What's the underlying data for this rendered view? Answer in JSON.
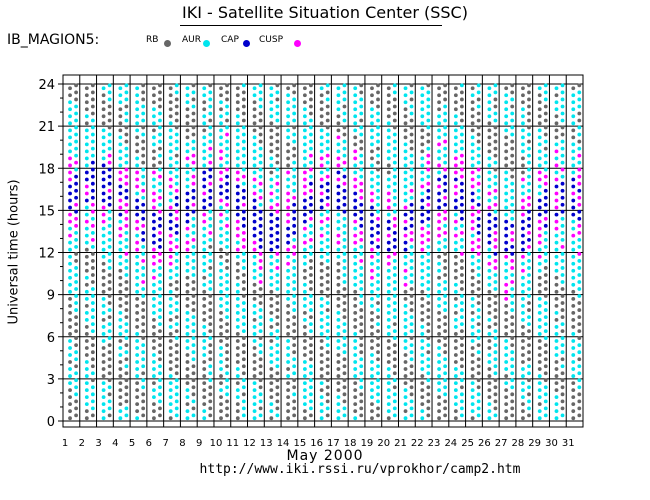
{
  "header": {
    "title": "IKI - Satellite Situation Center (SSC)",
    "satellite": "IB_MAGION5:"
  },
  "legend": [
    {
      "label": "RB",
      "color": "#666666"
    },
    {
      "label": "AUR",
      "color": "#00e5ee"
    },
    {
      "label": "CAP",
      "color": "#0000cc"
    },
    {
      "label": "CUSP",
      "color": "#ff00ff"
    }
  ],
  "footer": {
    "month": "May   2000",
    "url": "http://www.iki.rssi.ru/vprokhor/camp2.htm"
  },
  "chart_data": {
    "type": "scatter",
    "ylabel": "Universal time (hours)",
    "xlabel": "May   2000",
    "ylim": [
      0,
      24
    ],
    "yticks": [
      "0",
      "3",
      "6",
      "9",
      "12",
      "15",
      "18",
      "21",
      "24"
    ],
    "days": [
      "1",
      "2",
      "3",
      "4",
      "5",
      "6",
      "7",
      "8",
      "9",
      "10",
      "11",
      "12",
      "13",
      "14",
      "15",
      "16",
      "17",
      "18",
      "19",
      "20",
      "21",
      "22",
      "23",
      "24",
      "25",
      "26",
      "27",
      "28",
      "29",
      "30",
      "31"
    ],
    "sample_step_hours": 0.5,
    "grid": true,
    "regions": {
      "RB": "#666666",
      "AUR": "#00e5ee",
      "CAP": "#0000cc",
      "CUSP": "#ff00ff"
    }
  }
}
